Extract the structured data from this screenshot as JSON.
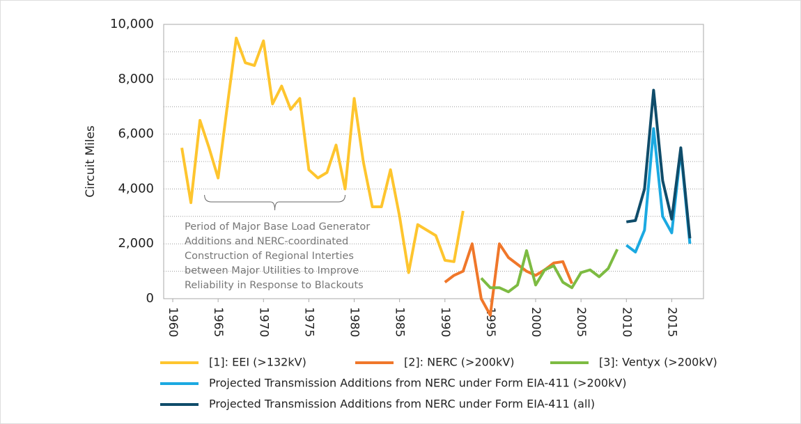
{
  "chart_data": {
    "type": "line",
    "y_label": "Circuit Miles",
    "xlim": [
      1959,
      2018.5
    ],
    "xticks": [
      1960,
      1965,
      1970,
      1975,
      1980,
      1985,
      1990,
      1995,
      2000,
      2005,
      2010,
      2015
    ],
    "ylim": [
      0,
      10000
    ],
    "yticks": [
      0,
      {
        "value": 2000,
        "label": "2,000"
      },
      {
        "value": 4000,
        "label": "4,000"
      },
      {
        "value": 6000,
        "label": "6,000"
      },
      {
        "value": 8000,
        "label": "8,000"
      },
      {
        "value": 10000,
        "label": "10,000"
      }
    ],
    "minor_yticks": [
      1000,
      3000,
      5000,
      7000,
      9000
    ],
    "grid": true,
    "annotation": {
      "lines": [
        "Period of Major Base Load Generator",
        "Additions and NERC-coordinated",
        "Construction of Regional Interties",
        "between Major Utilities to Improve",
        "Reliability in Response to Blackouts"
      ],
      "span": [
        1963.5,
        1979
      ]
    },
    "series": [
      {
        "name": "[1]: EEI (>132kV)",
        "color": "#fec52e",
        "x": [
          1961,
          1962,
          1963,
          1964,
          1965,
          1966,
          1967,
          1968,
          1969,
          1970,
          1971,
          1972,
          1973,
          1974,
          1975,
          1976,
          1977,
          1978,
          1979,
          1980,
          1981,
          1982,
          1983,
          1984,
          1985,
          1986,
          1987,
          1988,
          1989,
          1990,
          1991,
          1992
        ],
        "values": [
          5500,
          3500,
          6500,
          5500,
          4400,
          7000,
          9500,
          8600,
          8500,
          9400,
          7100,
          7750,
          6900,
          7300,
          4700,
          4400,
          4600,
          5600,
          4000,
          7300,
          5000,
          3350,
          3350,
          4700,
          3000,
          950,
          2700,
          2500,
          2300,
          1400,
          1350,
          3200
        ]
      },
      {
        "name": "[2]: NERC (>200kV)",
        "color": "#f0772a",
        "x": [
          1990,
          1991,
          1992,
          1993,
          1994,
          1995,
          1996,
          1997,
          1998,
          1999,
          2000,
          2001,
          2002,
          2003,
          2004
        ],
        "values": [
          600,
          850,
          1000,
          2000,
          0,
          -600,
          2000,
          1500,
          1250,
          1000,
          850,
          1050,
          1300,
          1350,
          550
        ]
      },
      {
        "name": "[3]: Ventyx (>200kV)",
        "color": "#7dbb42",
        "x": [
          1994,
          1995,
          1996,
          1997,
          1998,
          1999,
          2000,
          2001,
          2002,
          2003,
          2004,
          2005,
          2006,
          2007,
          2008,
          2009
        ],
        "values": [
          750,
          400,
          400,
          250,
          500,
          1750,
          500,
          1050,
          1200,
          600,
          400,
          950,
          1050,
          800,
          1100,
          1800
        ]
      },
      {
        "name": "Projected Transmission Additions from NERC under Form EIA-411 (>200kV)",
        "color": "#1ba9e1",
        "x": [
          2010,
          2011,
          2012,
          2013,
          2014,
          2015,
          2016,
          2017
        ],
        "values": [
          1950,
          1700,
          2500,
          6200,
          3000,
          2400,
          5400,
          2000
        ]
      },
      {
        "name": "Projected Transmission Additions from NERC under Form EIA-411 (all)",
        "color": "#0f4c6a",
        "x": [
          2010,
          2011,
          2012,
          2013,
          2014,
          2015,
          2016,
          2017
        ],
        "values": [
          2800,
          2850,
          4000,
          7600,
          4300,
          2900,
          5500,
          2200
        ]
      }
    ]
  }
}
